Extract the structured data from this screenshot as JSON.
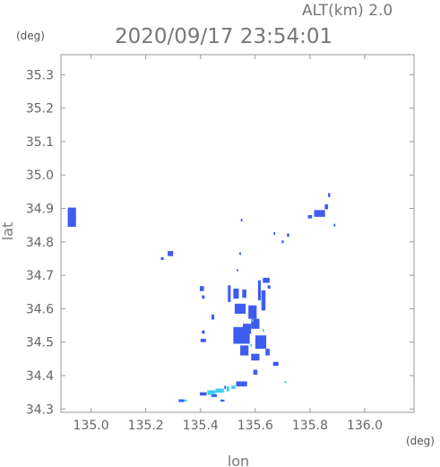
{
  "header": {
    "alt_label": "ALT(km) 2.0",
    "datetime": "2020/09/17 23:54:01",
    "y_unit": "(deg)",
    "x_unit": "(deg)"
  },
  "chart_data": {
    "type": "heatmap",
    "title": "2020/09/17 23:54:01",
    "subtitle": "ALT(km) 2.0",
    "xlabel": "lon",
    "ylabel": "lat",
    "xlim": [
      134.89,
      136.18
    ],
    "ylim": [
      34.29,
      35.36
    ],
    "xticks": [
      135.0,
      135.2,
      135.4,
      135.6,
      135.8,
      136.0
    ],
    "xtick_labels": [
      "135.0",
      "135.2",
      "135.4",
      "135.6",
      "135.8",
      "136.0"
    ],
    "yticks": [
      34.3,
      34.4,
      34.5,
      34.6,
      34.7,
      34.8,
      34.9,
      35.0,
      35.1,
      35.2,
      35.3
    ],
    "ytick_labels": [
      "34.3",
      "34.4",
      "34.5",
      "34.6",
      "34.7",
      "34.8",
      "34.9",
      "35.0",
      "35.1",
      "35.2",
      "35.3"
    ],
    "grid": false,
    "colors": {
      "blue": "#3f5cf0",
      "cyan": "#3fd0f0",
      "axis": "#999999"
    },
    "cells": [
      {
        "lon": 134.93,
        "lat": 34.885,
        "w": 0.03,
        "h": 0.035,
        "c": "blue"
      },
      {
        "lon": 134.93,
        "lat": 34.86,
        "w": 0.03,
        "h": 0.03,
        "c": "blue"
      },
      {
        "lon": 135.29,
        "lat": 34.765,
        "w": 0.02,
        "h": 0.015,
        "c": "blue"
      },
      {
        "lon": 135.26,
        "lat": 34.75,
        "w": 0.01,
        "h": 0.008,
        "c": "blue"
      },
      {
        "lon": 135.835,
        "lat": 34.885,
        "w": 0.04,
        "h": 0.02,
        "c": "blue"
      },
      {
        "lon": 135.86,
        "lat": 34.905,
        "w": 0.012,
        "h": 0.015,
        "c": "blue"
      },
      {
        "lon": 135.87,
        "lat": 34.94,
        "w": 0.008,
        "h": 0.012,
        "c": "blue"
      },
      {
        "lon": 135.8,
        "lat": 34.875,
        "w": 0.015,
        "h": 0.01,
        "c": "blue"
      },
      {
        "lon": 135.89,
        "lat": 34.85,
        "w": 0.006,
        "h": 0.008,
        "c": "blue"
      },
      {
        "lon": 135.72,
        "lat": 34.82,
        "w": 0.008,
        "h": 0.01,
        "c": "blue"
      },
      {
        "lon": 135.67,
        "lat": 34.825,
        "w": 0.006,
        "h": 0.008,
        "c": "blue"
      },
      {
        "lon": 135.7,
        "lat": 34.8,
        "w": 0.008,
        "h": 0.008,
        "c": "blue"
      },
      {
        "lon": 135.55,
        "lat": 34.865,
        "w": 0.006,
        "h": 0.008,
        "c": "blue"
      },
      {
        "lon": 135.545,
        "lat": 34.765,
        "w": 0.006,
        "h": 0.008,
        "c": "blue"
      },
      {
        "lon": 135.535,
        "lat": 34.715,
        "w": 0.006,
        "h": 0.006,
        "c": "blue"
      },
      {
        "lon": 135.405,
        "lat": 34.66,
        "w": 0.015,
        "h": 0.015,
        "c": "blue"
      },
      {
        "lon": 135.41,
        "lat": 34.635,
        "w": 0.01,
        "h": 0.01,
        "c": "blue"
      },
      {
        "lon": 135.445,
        "lat": 34.575,
        "w": 0.01,
        "h": 0.015,
        "c": "blue"
      },
      {
        "lon": 135.41,
        "lat": 34.53,
        "w": 0.01,
        "h": 0.01,
        "c": "blue"
      },
      {
        "lon": 135.41,
        "lat": 34.505,
        "w": 0.02,
        "h": 0.01,
        "c": "blue"
      },
      {
        "lon": 135.505,
        "lat": 34.645,
        "w": 0.01,
        "h": 0.05,
        "c": "blue"
      },
      {
        "lon": 135.53,
        "lat": 34.645,
        "w": 0.02,
        "h": 0.03,
        "c": "blue"
      },
      {
        "lon": 135.56,
        "lat": 34.645,
        "w": 0.015,
        "h": 0.025,
        "c": "blue"
      },
      {
        "lon": 135.545,
        "lat": 34.6,
        "w": 0.04,
        "h": 0.03,
        "c": "blue"
      },
      {
        "lon": 135.59,
        "lat": 34.59,
        "w": 0.03,
        "h": 0.04,
        "c": "blue"
      },
      {
        "lon": 135.615,
        "lat": 34.655,
        "w": 0.01,
        "h": 0.06,
        "c": "blue"
      },
      {
        "lon": 135.64,
        "lat": 34.685,
        "w": 0.025,
        "h": 0.015,
        "c": "blue"
      },
      {
        "lon": 135.65,
        "lat": 34.665,
        "w": 0.01,
        "h": 0.01,
        "c": "blue"
      },
      {
        "lon": 135.63,
        "lat": 34.625,
        "w": 0.015,
        "h": 0.06,
        "c": "blue"
      },
      {
        "lon": 135.6,
        "lat": 34.555,
        "w": 0.03,
        "h": 0.03,
        "c": "blue"
      },
      {
        "lon": 135.57,
        "lat": 34.54,
        "w": 0.03,
        "h": 0.03,
        "c": "blue"
      },
      {
        "lon": 135.55,
        "lat": 34.52,
        "w": 0.06,
        "h": 0.05,
        "c": "blue"
      },
      {
        "lon": 135.56,
        "lat": 34.475,
        "w": 0.03,
        "h": 0.03,
        "c": "blue"
      },
      {
        "lon": 135.62,
        "lat": 34.5,
        "w": 0.04,
        "h": 0.04,
        "c": "blue"
      },
      {
        "lon": 135.6,
        "lat": 34.455,
        "w": 0.03,
        "h": 0.02,
        "c": "blue"
      },
      {
        "lon": 135.645,
        "lat": 34.47,
        "w": 0.015,
        "h": 0.02,
        "c": "blue"
      },
      {
        "lon": 135.59,
        "lat": 34.565,
        "w": 0.006,
        "h": 0.008,
        "c": "cyan"
      },
      {
        "lon": 135.585,
        "lat": 34.49,
        "w": 0.006,
        "h": 0.008,
        "c": "cyan"
      },
      {
        "lon": 135.63,
        "lat": 34.535,
        "w": 0.006,
        "h": 0.008,
        "c": "cyan"
      },
      {
        "lon": 135.6,
        "lat": 34.41,
        "w": 0.015,
        "h": 0.015,
        "c": "blue"
      },
      {
        "lon": 135.675,
        "lat": 34.435,
        "w": 0.02,
        "h": 0.012,
        "c": "blue"
      },
      {
        "lon": 135.71,
        "lat": 34.38,
        "w": 0.006,
        "h": 0.006,
        "c": "cyan"
      },
      {
        "lon": 135.55,
        "lat": 34.375,
        "w": 0.04,
        "h": 0.015,
        "c": "blue"
      },
      {
        "lon": 135.52,
        "lat": 34.365,
        "w": 0.015,
        "h": 0.01,
        "c": "cyan"
      },
      {
        "lon": 135.5,
        "lat": 34.36,
        "w": 0.01,
        "h": 0.015,
        "c": "cyan"
      },
      {
        "lon": 135.47,
        "lat": 34.355,
        "w": 0.03,
        "h": 0.012,
        "c": "cyan"
      },
      {
        "lon": 135.44,
        "lat": 34.35,
        "w": 0.03,
        "h": 0.012,
        "c": "cyan"
      },
      {
        "lon": 135.41,
        "lat": 34.345,
        "w": 0.025,
        "h": 0.01,
        "c": "blue"
      },
      {
        "lon": 135.45,
        "lat": 34.34,
        "w": 0.02,
        "h": 0.008,
        "c": "blue"
      },
      {
        "lon": 135.435,
        "lat": 34.345,
        "w": 0.015,
        "h": 0.006,
        "c": "cyan"
      },
      {
        "lon": 135.49,
        "lat": 34.365,
        "w": 0.006,
        "h": 0.01,
        "c": "blue"
      },
      {
        "lon": 135.33,
        "lat": 34.325,
        "w": 0.02,
        "h": 0.008,
        "c": "blue"
      },
      {
        "lon": 135.345,
        "lat": 34.325,
        "w": 0.01,
        "h": 0.006,
        "c": "cyan"
      },
      {
        "lon": 135.48,
        "lat": 34.325,
        "w": 0.015,
        "h": 0.006,
        "c": "blue"
      }
    ]
  }
}
